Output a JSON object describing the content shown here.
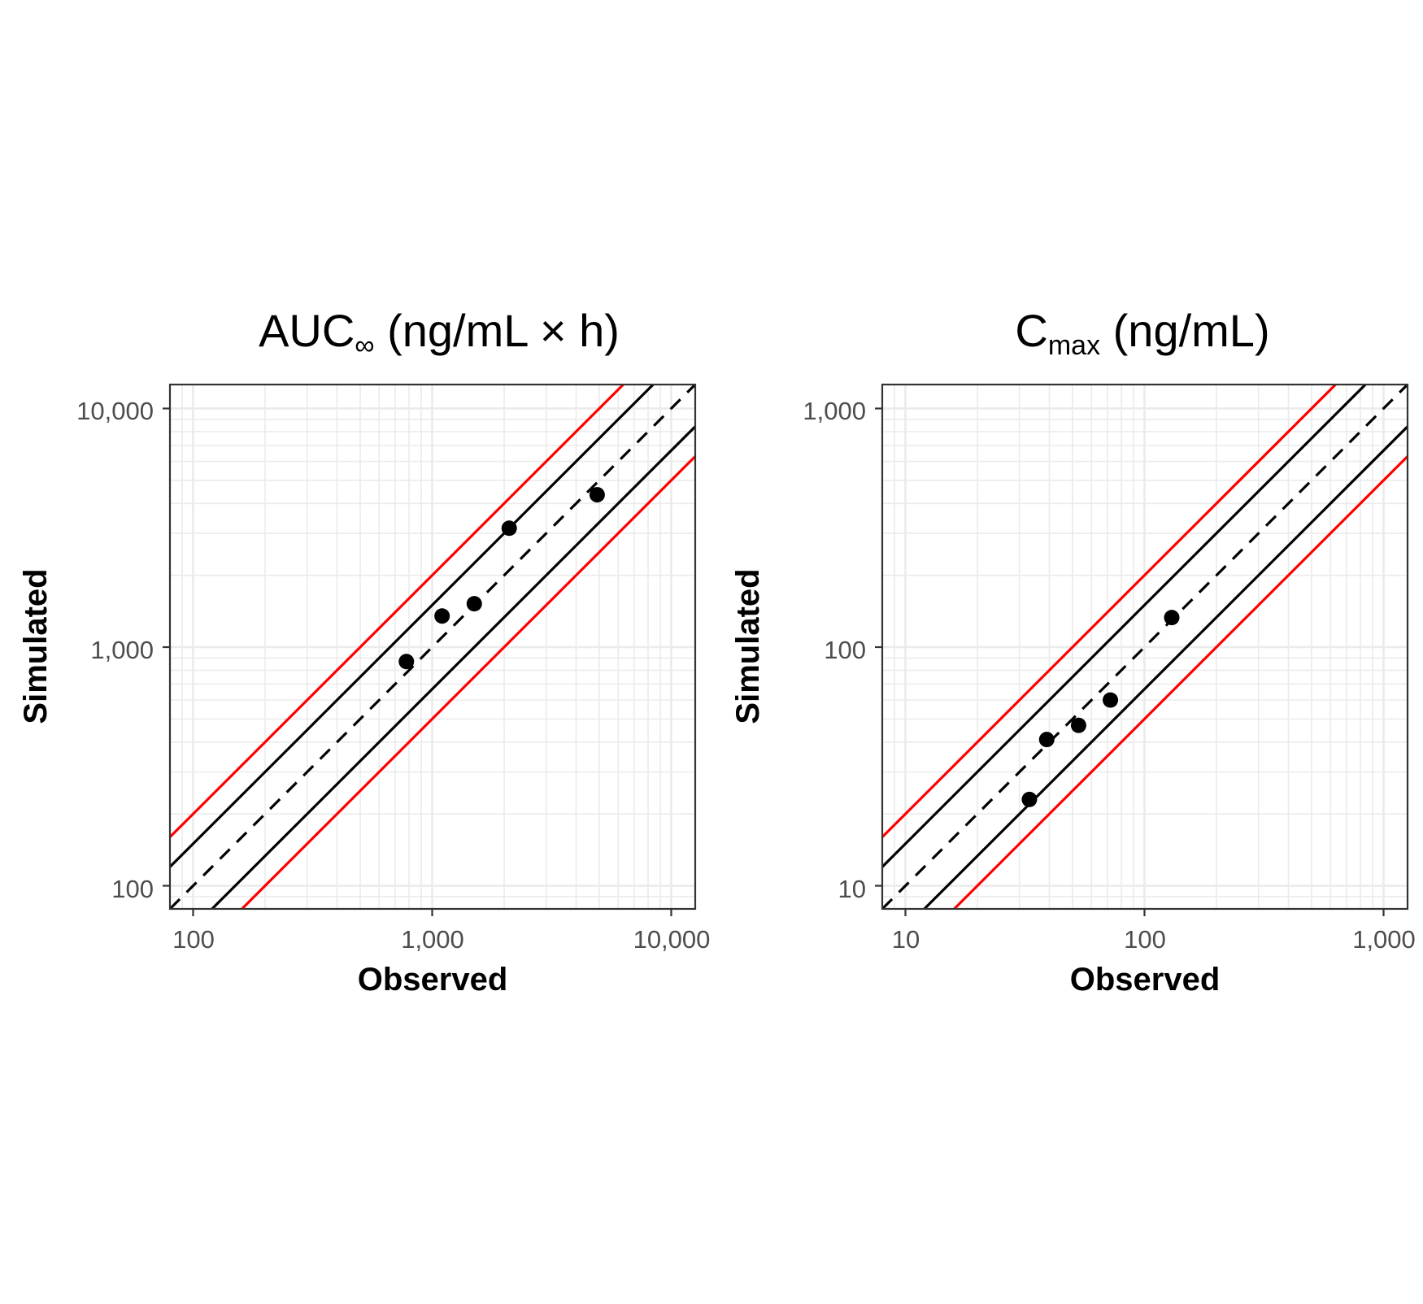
{
  "panels": [
    {
      "title": {
        "main": "AUC",
        "sub": "∞",
        "tail": " (ng/mL × h)"
      },
      "xlabel": "Observed",
      "ylabel": "Simulated",
      "tick_labels": [
        "100",
        "1,000",
        "10,000"
      ]
    },
    {
      "title": {
        "main": "C",
        "sub": "max",
        "tail": " (ng/mL)"
      },
      "xlabel": "Observed",
      "ylabel": "Simulated",
      "tick_labels": [
        "10",
        "100",
        "1,000"
      ]
    }
  ],
  "chart_data": [
    {
      "type": "scatter",
      "title": "AUC∞ (ng/mL × h)",
      "xlabel": "Observed",
      "ylabel": "Simulated",
      "scale": "log10",
      "xlim": [
        80,
        12600
      ],
      "ylim": [
        80,
        12600
      ],
      "ticks": [
        100,
        1000,
        10000
      ],
      "tick_labels": [
        "100",
        "1,000",
        "10,000"
      ],
      "grid": true,
      "points": [
        {
          "x": 780,
          "y": 870
        },
        {
          "x": 1100,
          "y": 1350
        },
        {
          "x": 1500,
          "y": 1520
        },
        {
          "x": 2100,
          "y": 3150
        },
        {
          "x": 4900,
          "y": 4350
        }
      ],
      "reference_lines": [
        {
          "kind": "identity",
          "fold": 1,
          "style": "dashed",
          "color": "#000000"
        },
        {
          "kind": "fold",
          "fold": 1.5,
          "style": "solid",
          "color": "#000000"
        },
        {
          "kind": "fold",
          "fold": 0.6667,
          "style": "solid",
          "color": "#000000"
        },
        {
          "kind": "fold",
          "fold": 2,
          "style": "solid",
          "color": "#ff0000"
        },
        {
          "kind": "fold",
          "fold": 0.5,
          "style": "solid",
          "color": "#ff0000"
        }
      ]
    },
    {
      "type": "scatter",
      "title": "Cmax (ng/mL)",
      "xlabel": "Observed",
      "ylabel": "Simulated",
      "scale": "log10",
      "xlim": [
        8,
        1260
      ],
      "ylim": [
        8,
        1260
      ],
      "ticks": [
        10,
        100,
        1000
      ],
      "tick_labels": [
        "10",
        "100",
        "1,000"
      ],
      "grid": true,
      "points": [
        {
          "x": 33,
          "y": 23
        },
        {
          "x": 39,
          "y": 41
        },
        {
          "x": 53,
          "y": 47
        },
        {
          "x": 72,
          "y": 60
        },
        {
          "x": 130,
          "y": 133
        }
      ],
      "reference_lines": [
        {
          "kind": "identity",
          "fold": 1,
          "style": "dashed",
          "color": "#000000"
        },
        {
          "kind": "fold",
          "fold": 1.5,
          "style": "solid",
          "color": "#000000"
        },
        {
          "kind": "fold",
          "fold": 0.6667,
          "style": "solid",
          "color": "#000000"
        },
        {
          "kind": "fold",
          "fold": 2,
          "style": "solid",
          "color": "#ff0000"
        },
        {
          "kind": "fold",
          "fold": 0.5,
          "style": "solid",
          "color": "#ff0000"
        }
      ]
    }
  ]
}
